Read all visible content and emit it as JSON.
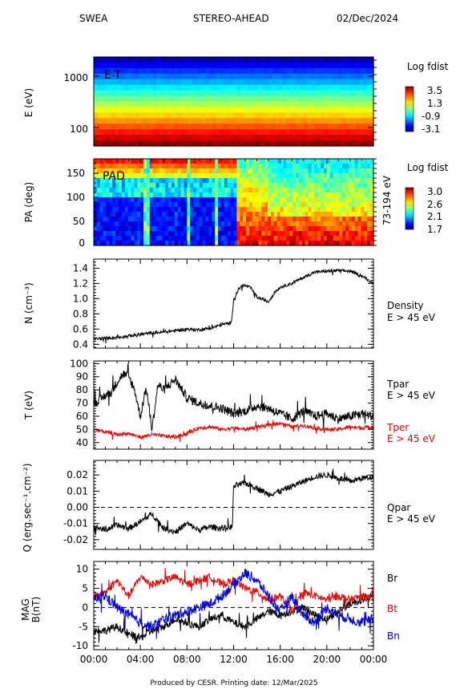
{
  "header": {
    "instrument": "SWEA",
    "spacecraft": "STEREO-AHEAD",
    "date": "02/Dec/2024"
  },
  "footer": "Produced by CESR.   Printing date: 12/Mar/2025",
  "colors": {
    "tper": "#ee0000",
    "bt": "#ee0000",
    "bn": "#0000dd",
    "br": "#000000"
  },
  "chart_data": [
    {
      "type": "heatmap",
      "panel": "E-T",
      "ylabel": "E (eV)",
      "yscale": "log",
      "yticks": [
        "100",
        "1000"
      ],
      "annotation": "E-T",
      "colorbar": {
        "title": "Log fdist",
        "ticks": [
          "3.5",
          "1.3",
          "-0.9",
          "-3.1"
        ],
        "range": [
          -3.5,
          3.8
        ]
      },
      "xticks": [
        "00:00",
        "04:00",
        "08:00",
        "12:00",
        "16:00",
        "20:00",
        "00:00"
      ]
    },
    {
      "type": "heatmap",
      "panel": "PAD",
      "ylabel": "PA (deg)",
      "ylim": [
        0,
        180
      ],
      "yticks": [
        "0",
        "50",
        "100",
        "150"
      ],
      "annotation": "PAD",
      "energy_label": "73-194 eV",
      "colorbar": {
        "title": "Log fdist",
        "ticks": [
          "3.0",
          "2.6",
          "2.1",
          "1.7"
        ],
        "range": [
          1.6,
          3.1
        ]
      }
    },
    {
      "type": "line",
      "panel": "density",
      "ylabel": "N (cm⁻³)",
      "ylim": [
        0.35,
        1.52
      ],
      "yticks": [
        "0.4",
        "0.6",
        "0.8",
        "1.0",
        "1.2",
        "1.4"
      ],
      "legend": [
        "Density",
        "E > 45 eV"
      ],
      "series": [
        {
          "name": "Density",
          "x_hours": [
            0,
            1,
            2,
            3,
            4,
            5,
            6,
            7,
            8,
            9,
            10,
            11,
            11.8,
            12,
            12.4,
            12.8,
            13.5,
            14,
            15,
            15.5,
            16,
            17,
            18,
            19,
            20,
            21,
            22,
            23,
            24
          ],
          "values": [
            0.47,
            0.48,
            0.49,
            0.51,
            0.53,
            0.55,
            0.56,
            0.58,
            0.6,
            0.59,
            0.61,
            0.66,
            0.68,
            0.98,
            1.12,
            1.18,
            1.14,
            1.02,
            0.96,
            1.08,
            1.15,
            1.2,
            1.28,
            1.35,
            1.36,
            1.37,
            1.36,
            1.3,
            1.2
          ]
        }
      ]
    },
    {
      "type": "line",
      "panel": "temperature",
      "ylabel": "T (eV)",
      "ylim": [
        35,
        102
      ],
      "yticks": [
        "40",
        "50",
        "60",
        "70",
        "80",
        "90",
        "100"
      ],
      "legend_top": [
        "Tpar",
        "E > 45 eV"
      ],
      "legend_bottom": [
        "Tper",
        "E > 45 eV"
      ],
      "series": [
        {
          "name": "Tpar",
          "x_hours": [
            0,
            0.5,
            1,
            1.5,
            2,
            2.5,
            3,
            3.5,
            4,
            4.5,
            5,
            5.5,
            6,
            7,
            8,
            9,
            10,
            11,
            12,
            13,
            14,
            15,
            16,
            17,
            18,
            19,
            20,
            21,
            22,
            23,
            24
          ],
          "values": [
            70,
            72,
            76,
            78,
            86,
            92,
            90,
            80,
            60,
            82,
            50,
            84,
            80,
            88,
            74,
            70,
            68,
            66,
            62,
            64,
            68,
            66,
            62,
            58,
            64,
            60,
            62,
            58,
            60,
            62,
            60
          ]
        },
        {
          "name": "Tper",
          "x_hours": [
            0,
            1,
            2,
            3,
            4,
            5,
            6,
            7,
            8,
            9,
            10,
            11,
            12,
            13,
            14,
            15,
            16,
            17,
            18,
            19,
            20,
            21,
            22,
            23,
            24
          ],
          "values": [
            50,
            48,
            46,
            47,
            44,
            46,
            45,
            44,
            47,
            51,
            52,
            50,
            51,
            50,
            52,
            53,
            55,
            52,
            53,
            51,
            50,
            50,
            52,
            51,
            52
          ]
        }
      ]
    },
    {
      "type": "line",
      "panel": "heatflux",
      "ylabel": "Q (erg.sec⁻¹.cm⁻²)",
      "ylim": [
        -0.026,
        0.029
      ],
      "yticks": [
        "-0.02",
        "-0.01",
        "0.00",
        "0.01",
        "0.02"
      ],
      "legend": [
        "Qpar",
        "E > 45 eV"
      ],
      "reference_line": 0,
      "series": [
        {
          "name": "Qpar",
          "x_hours": [
            0,
            1,
            2,
            3,
            4,
            5,
            6,
            7,
            8,
            9,
            10,
            11,
            11.9,
            12,
            13,
            14,
            15,
            16,
            17,
            18,
            19,
            20,
            21,
            22,
            23,
            24
          ],
          "values": [
            -0.012,
            -0.014,
            -0.011,
            -0.013,
            -0.009,
            -0.004,
            -0.013,
            -0.015,
            -0.01,
            -0.014,
            -0.012,
            -0.013,
            -0.012,
            0.013,
            0.015,
            0.012,
            0.008,
            0.01,
            0.013,
            0.016,
            0.019,
            0.02,
            0.018,
            0.016,
            0.018,
            0.019
          ]
        }
      ]
    },
    {
      "type": "line",
      "panel": "mag",
      "ylabel": "MAG B(nT)",
      "ylim": [
        -11,
        12
      ],
      "yticks": [
        "-10",
        "-5",
        "0",
        "5",
        "10"
      ],
      "reference_line": 0,
      "xticks": [
        "00:00",
        "04:00",
        "08:00",
        "12:00",
        "16:00",
        "20:00",
        "00:00"
      ],
      "series": [
        {
          "name": "Br",
          "x_hours": [
            0,
            1,
            2,
            3,
            4,
            5,
            6,
            7,
            8,
            9,
            10,
            11,
            12,
            13,
            14,
            15,
            16,
            17,
            18,
            19,
            20,
            21,
            22,
            23,
            24
          ],
          "values": [
            -6,
            -6,
            -5,
            -7,
            -8,
            -6,
            -5,
            -3,
            -4,
            -5,
            -3,
            -2,
            -4,
            -5,
            -3,
            -1,
            -2,
            -1,
            0,
            -2,
            -3,
            -1,
            1,
            2,
            3
          ]
        },
        {
          "name": "Bt",
          "x_hours": [
            0,
            1,
            2,
            3,
            4,
            5,
            6,
            7,
            8,
            9,
            10,
            11,
            12,
            13,
            14,
            15,
            16,
            17,
            18,
            19,
            20,
            21,
            22,
            23,
            24
          ],
          "values": [
            3,
            4,
            7,
            3,
            8,
            6,
            7,
            8,
            6,
            7,
            8,
            6,
            7,
            5,
            4,
            2,
            3,
            -1,
            4,
            3,
            2,
            3,
            2,
            3,
            2
          ]
        },
        {
          "name": "Bn",
          "x_hours": [
            0,
            1,
            2,
            3,
            4,
            5,
            6,
            7,
            8,
            9,
            10,
            11,
            12,
            13,
            14,
            15,
            16,
            17,
            18,
            19,
            20,
            21,
            22,
            23,
            24
          ],
          "values": [
            2,
            3,
            0,
            -2,
            -4,
            -5,
            -3,
            -2,
            -1,
            0,
            1,
            3,
            6,
            9,
            7,
            3,
            -1,
            3,
            -2,
            -4,
            0,
            -2,
            -3,
            -4,
            -3
          ]
        }
      ]
    }
  ]
}
